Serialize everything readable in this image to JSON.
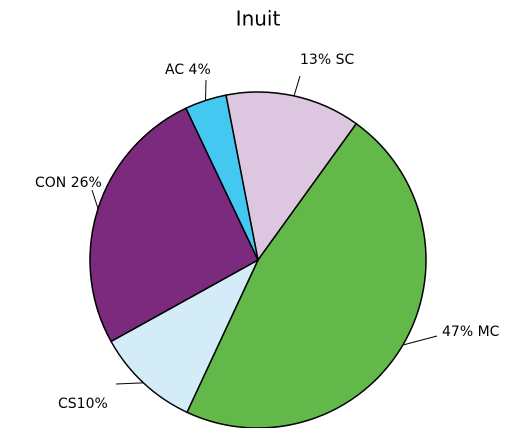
{
  "chart_data": {
    "type": "pie",
    "title": "Inuit",
    "values": [
      13,
      47,
      10,
      26,
      4
    ],
    "value_labels": [
      "13% SC",
      "47% MC",
      "CS10%",
      "CON 26%",
      "AC 4%"
    ],
    "colors": [
      "#dcc6e0",
      "#62b94a",
      "#d3ecf8",
      "#7b2a7e",
      "#44c8f2"
    ]
  }
}
